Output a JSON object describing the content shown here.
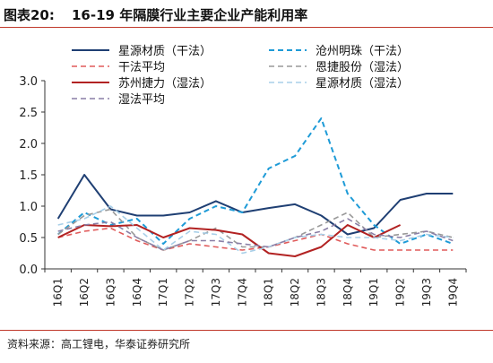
{
  "figure_label": "图表20:",
  "figure_title": "16-19 年隔膜行业主要企业产能利用率",
  "source": "资料来源：高工锂电，华泰证券研究所",
  "chart_data": {
    "type": "line",
    "categories": [
      "16Q1",
      "16Q2",
      "16Q3",
      "16Q4",
      "17Q1",
      "17Q2",
      "17Q3",
      "17Q4",
      "18Q1",
      "18Q2",
      "18Q3",
      "18Q4",
      "19Q1",
      "19Q2",
      "19Q3",
      "19Q4"
    ],
    "ylim": [
      0,
      3.0
    ],
    "yticks": [
      0.0,
      0.5,
      1.0,
      1.5,
      2.0,
      2.5,
      3.0
    ],
    "ytick_labels": [
      "0.0",
      "0.5",
      "1.0",
      "1.5",
      "2.0",
      "2.5",
      "3.0"
    ],
    "grid": false,
    "legend_position": "top",
    "series": [
      {
        "name": "星源材质（干法）",
        "color": "#1f3f73",
        "dash": "solid",
        "width": 2,
        "values": [
          0.8,
          1.5,
          0.95,
          0.85,
          0.85,
          0.9,
          1.08,
          0.9,
          0.97,
          1.03,
          0.85,
          0.55,
          0.65,
          1.1,
          1.2,
          1.2
        ]
      },
      {
        "name": "沧州明珠（干法）",
        "color": "#1e9bd7",
        "dash": "dashed",
        "width": 2,
        "values": [
          0.55,
          0.9,
          0.7,
          0.8,
          0.4,
          0.8,
          1.0,
          0.9,
          1.6,
          1.8,
          2.4,
          1.2,
          0.7,
          0.4,
          0.55,
          0.4
        ]
      },
      {
        "name": "干法平均",
        "color": "#e05a5a",
        "dash": "dashed",
        "width": 1.6,
        "values": [
          0.5,
          0.6,
          0.65,
          0.45,
          0.3,
          0.4,
          0.35,
          0.3,
          0.35,
          0.45,
          0.55,
          0.4,
          0.3,
          0.3,
          0.3,
          0.3
        ]
      },
      {
        "name": "恩捷股份（湿法）",
        "color": "#999999",
        "dash": "dashed",
        "width": 1.6,
        "values": [
          0.55,
          0.85,
          0.95,
          0.5,
          0.3,
          0.45,
          0.65,
          0.35,
          0.35,
          0.5,
          0.7,
          0.9,
          0.5,
          0.55,
          0.6,
          0.5
        ]
      },
      {
        "name": "苏州捷力（湿法）",
        "color": "#b22222",
        "dash": "solid",
        "width": 2,
        "values": [
          0.5,
          0.7,
          0.68,
          0.7,
          0.5,
          0.65,
          0.62,
          0.55,
          0.25,
          0.2,
          0.35,
          0.7,
          0.5,
          0.7,
          null,
          null
        ]
      },
      {
        "name": "星源材质（湿法）",
        "color": "#a8cfe8",
        "dash": "dashed",
        "width": 1.6,
        "values": [
          0.7,
          0.8,
          1.0,
          0.65,
          0.3,
          0.6,
          0.55,
          0.25,
          0.35,
          0.5,
          0.55,
          0.5,
          0.5,
          0.45,
          0.55,
          0.5
        ]
      },
      {
        "name": "湿法平均",
        "color": "#8a7fa6",
        "dash": "dashed",
        "width": 1.6,
        "values": [
          0.6,
          0.7,
          0.75,
          0.5,
          0.3,
          0.45,
          0.45,
          0.4,
          0.35,
          0.5,
          0.6,
          0.8,
          0.55,
          0.5,
          0.6,
          0.45
        ]
      }
    ]
  }
}
